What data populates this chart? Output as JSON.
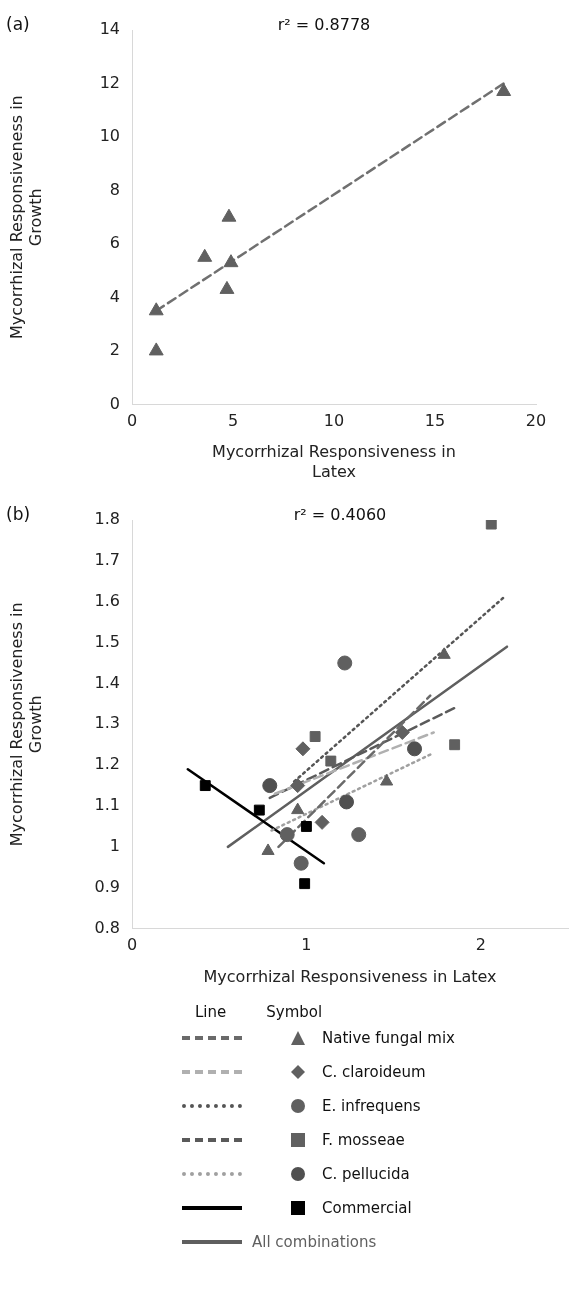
{
  "chart_data": [
    {
      "type": "scatter",
      "xlabel": "Mycorrhizal Responsiveness in Latex",
      "ylabel": "Mycorrhizal Responsiveness in Growth",
      "xlim": [
        0,
        20
      ],
      "xticks": [
        0,
        5,
        10,
        15,
        20
      ],
      "ylim": [
        0,
        14
      ],
      "yticks": [
        0,
        2,
        4,
        6,
        8,
        10,
        12,
        14
      ],
      "grid": false,
      "legend": false,
      "annotations": [
        "(a)",
        "r² = 0.8778"
      ],
      "series": [
        {
          "type": "scatter",
          "marker": "triangle",
          "color": "#606060",
          "x": [
            1.2,
            1.2,
            3.6,
            4.8,
            4.9,
            4.7,
            18.4
          ],
          "values": [
            3.5,
            2.0,
            5.5,
            7.0,
            5.3,
            4.3,
            11.7
          ]
        },
        {
          "type": "line",
          "line_style": "dashed",
          "color": "#707070",
          "x": [
            1.2,
            18.4
          ],
          "values": [
            3.5,
            12.0
          ]
        }
      ]
    },
    {
      "type": "scatter",
      "xlabel": "Mycorrhizal Responsiveness in Latex",
      "ylabel": "Mycorrhizal Responsiveness in Growth",
      "xlim": [
        0,
        2.5
      ],
      "xticks": [
        0,
        1,
        2
      ],
      "ylim": [
        0.8,
        1.8
      ],
      "yticks": [
        0.8,
        0.9,
        1.0,
        1.1,
        1.2,
        1.3,
        1.4,
        1.5,
        1.6,
        1.7,
        1.8
      ],
      "grid": false,
      "legend": "bottom",
      "annotations": [
        "(b)",
        "r² = 0.4060",
        "Line",
        "Symbol"
      ],
      "series": [
        {
          "type": "scatter",
          "name": "Native fungal mix",
          "marker": "triangle",
          "color": "#606060",
          "x": [
            0.78,
            0.95,
            1.46,
            1.79
          ],
          "values": [
            0.99,
            1.09,
            1.16,
            1.47
          ]
        },
        {
          "type": "scatter",
          "name": "C. claroideum",
          "marker": "diamond",
          "color": "#606060",
          "x": [
            0.95,
            0.98,
            1.09,
            1.55
          ],
          "values": [
            1.15,
            1.24,
            1.06,
            1.28
          ]
        },
        {
          "type": "scatter",
          "name": "E. infrequens",
          "marker": "circle",
          "color": "#606060",
          "x": [
            0.89,
            0.97,
            1.22,
            1.3
          ],
          "values": [
            1.03,
            0.96,
            1.45,
            1.03
          ]
        },
        {
          "type": "scatter",
          "name": "F. mosseae",
          "marker": "square",
          "color": "#606060",
          "x": [
            1.05,
            1.14,
            1.85,
            2.06
          ],
          "values": [
            1.27,
            1.21,
            1.25,
            1.79
          ]
        },
        {
          "type": "scatter",
          "name": "C. pellucida",
          "marker": "circle",
          "color": "#505050",
          "x": [
            0.79,
            1.23,
            1.62
          ],
          "values": [
            1.15,
            1.11,
            1.24
          ]
        },
        {
          "type": "scatter",
          "name": "Commercial",
          "marker": "square",
          "color": "#000000",
          "x": [
            0.42,
            0.73,
            1.0,
            0.99
          ],
          "values": [
            1.15,
            1.09,
            1.05,
            0.91
          ]
        },
        {
          "type": "line",
          "line_style": "dashed",
          "color": "#6a6a6a",
          "x": [
            0.84,
            1.71
          ],
          "values": [
            1.0,
            1.37
          ]
        },
        {
          "type": "line",
          "line_style": "dashed",
          "color": "#b0b0b0",
          "x": [
            0.82,
            1.73
          ],
          "values": [
            1.13,
            1.28
          ]
        },
        {
          "type": "line",
          "line_style": "dotted",
          "color": "#555555",
          "x": [
            0.93,
            2.13
          ],
          "values": [
            1.16,
            1.61
          ]
        },
        {
          "type": "line",
          "line_style": "dashed",
          "color": "#5a5a5a",
          "x": [
            0.79,
            1.85
          ],
          "values": [
            1.12,
            1.34
          ]
        },
        {
          "type": "line",
          "line_style": "dotted",
          "color": "#a0a0a0",
          "x": [
            0.8,
            1.73
          ],
          "values": [
            1.04,
            1.23
          ]
        },
        {
          "type": "line",
          "line_style": "solid",
          "color": "#000000",
          "x": [
            0.32,
            1.1
          ],
          "values": [
            1.19,
            0.96
          ]
        },
        {
          "type": "line",
          "name": "All combinations",
          "line_style": "solid",
          "color": "#5f5f5f",
          "x": [
            0.55,
            2.15
          ],
          "values": [
            1.0,
            1.49
          ]
        }
      ]
    }
  ]
}
